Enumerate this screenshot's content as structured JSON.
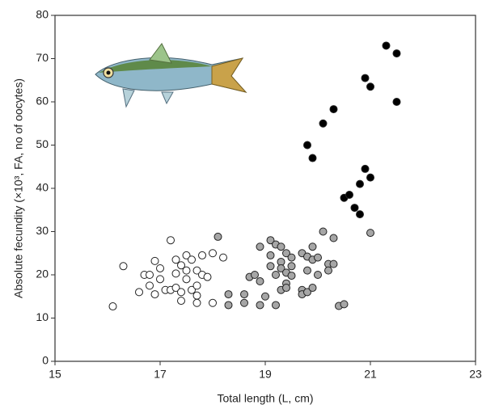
{
  "chart_data": {
    "type": "scatter",
    "x_label": "Total length (L, cm)",
    "y_label": "Absolute fecundity (×10³, FA, no of oocytes)",
    "xlim": [
      15,
      23
    ],
    "xticks": [
      15,
      17,
      19,
      21,
      23
    ],
    "ylim": [
      0,
      80
    ],
    "yticks": [
      0,
      10,
      20,
      30,
      40,
      50,
      60,
      70,
      80
    ],
    "grid": false,
    "series": [
      {
        "color": "#ffffff",
        "x": [
          16.1,
          16.3,
          16.6,
          16.7,
          16.8,
          16.8,
          16.9,
          16.9,
          17.0,
          17.0,
          17.1,
          17.2,
          17.2,
          17.3,
          17.3,
          17.3,
          17.4,
          17.4,
          17.4,
          17.5,
          17.5,
          17.5,
          17.6,
          17.6,
          17.7,
          17.7,
          17.7,
          17.7,
          17.8,
          17.8,
          17.9,
          18.0,
          18.0,
          18.2
        ],
        "y": [
          12.7,
          22,
          16,
          20,
          17.5,
          20,
          23.2,
          15.5,
          21.5,
          19,
          16.5,
          28,
          16.5,
          20.3,
          23.5,
          17,
          16,
          22.2,
          14,
          24.5,
          21,
          19,
          16.5,
          23.5,
          21,
          17.5,
          15.2,
          13.5,
          24.5,
          20,
          19.5,
          25,
          13.5,
          24
        ]
      },
      {
        "color": "#a6a6a6",
        "x": [
          18.1,
          18.3,
          18.3,
          18.6,
          18.6,
          18.7,
          18.8,
          18.9,
          18.9,
          18.9,
          19.0,
          19.1,
          19.1,
          19.1,
          19.2,
          19.2,
          19.2,
          19.3,
          19.3,
          19.3,
          19.3,
          19.4,
          19.4,
          19.4,
          19.4,
          19.5,
          19.5,
          19.5,
          19.7,
          19.7,
          19.7,
          19.8,
          19.8,
          19.8,
          19.9,
          19.9,
          19.9,
          20.0,
          20.0,
          20.1,
          20.2,
          20.2,
          20.3,
          20.3,
          20.4,
          20.5,
          21.0
        ],
        "y": [
          28.8,
          15.5,
          13,
          13.5,
          15.5,
          19.5,
          20,
          26.5,
          13,
          18.5,
          15,
          28,
          24.5,
          22,
          27,
          13,
          20,
          26.5,
          23,
          21.5,
          16.5,
          25,
          18,
          17,
          20.5,
          24,
          22,
          19.8,
          25,
          16.5,
          15.5,
          24.2,
          16,
          21,
          26.5,
          17,
          23.5,
          24,
          20,
          30,
          22.5,
          21,
          28.5,
          22.5,
          12.8,
          13.2,
          29.7
        ]
      },
      {
        "color": "#000000",
        "x": [
          19.8,
          19.9,
          20.1,
          20.3,
          20.5,
          20.6,
          20.7,
          20.8,
          20.8,
          20.9,
          20.9,
          21.0,
          21.0,
          21.3,
          21.5,
          21.5
        ],
        "y": [
          50,
          47,
          55,
          58.3,
          37.8,
          38.5,
          35.5,
          34,
          41,
          44.5,
          65.5,
          63.5,
          42.5,
          73,
          71.2,
          60
        ]
      }
    ]
  }
}
